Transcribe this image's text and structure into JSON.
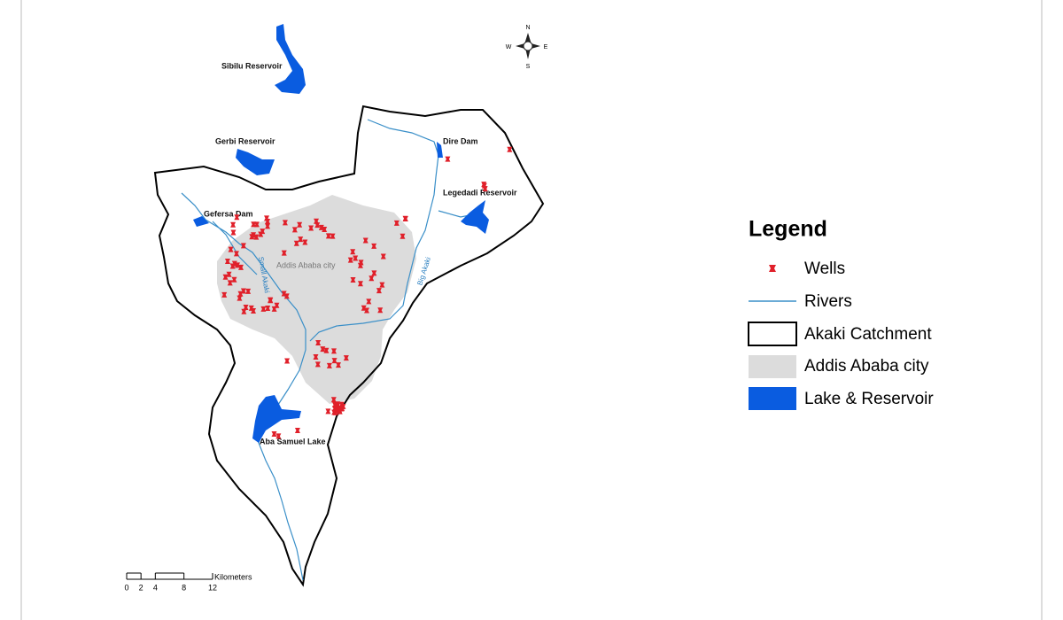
{
  "map": {
    "reservoirs": [
      "Sibilu Reservoir",
      "Gerbi Reservoir",
      "Dire Dam",
      "Legedadi Reservoir",
      "Gefersa Dam",
      "Aba Samuel Lake"
    ],
    "city_label": "Addis Ababa city",
    "rivers": [
      "Small Akaki",
      "Big Akaki"
    ],
    "compass": {
      "north": "N",
      "south": "S",
      "east": "E",
      "west": "W"
    },
    "scale": {
      "ticks": [
        0,
        2,
        4,
        8,
        12
      ],
      "unit": "Kilometers"
    },
    "legend": {
      "title": "Legend",
      "items": [
        "Wells",
        "Rivers",
        "Akaki Catchment",
        "Addis Ababa city",
        "Lake & Reservoir"
      ]
    }
  }
}
